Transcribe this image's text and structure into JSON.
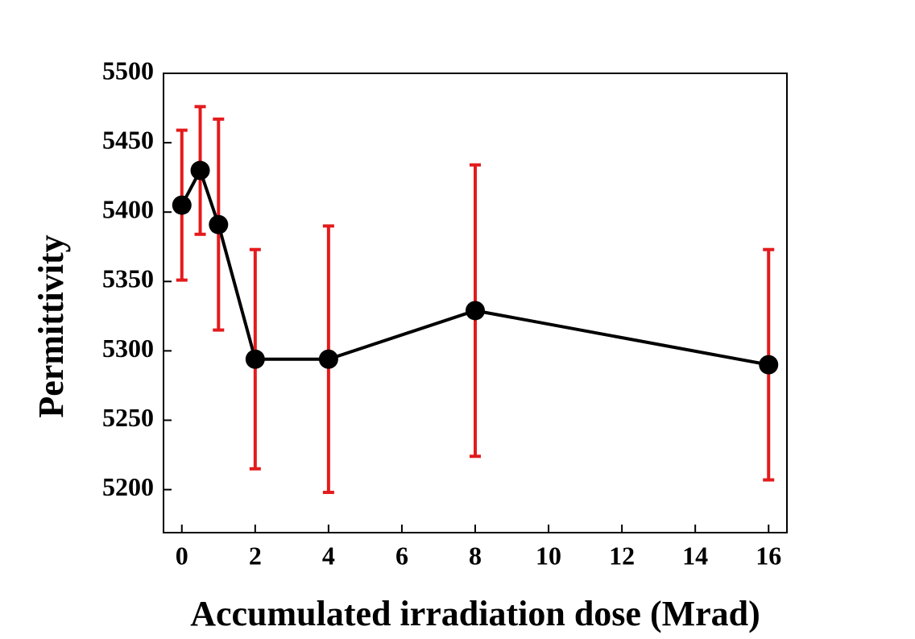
{
  "chart_data": {
    "type": "line",
    "xlabel": "Accumulated irradiation dose (Mrad)",
    "ylabel": "Permittivity",
    "x": [
      0,
      0.5,
      1,
      2,
      4,
      8,
      16
    ],
    "series": [
      {
        "name": "Permittivity",
        "color": "#000000",
        "error_color": "#e31a1c",
        "values": [
          5405,
          5430,
          5391,
          5294,
          5294,
          5329,
          5290
        ],
        "errors": [
          54,
          46,
          76,
          79,
          96,
          105,
          83
        ]
      }
    ],
    "xlim": [
      -0.5,
      16.5
    ],
    "xticks": [
      0,
      2,
      4,
      6,
      8,
      10,
      12,
      14,
      16
    ],
    "ylim": [
      5169,
      5500
    ],
    "yticks": [
      5200,
      5250,
      5300,
      5350,
      5400,
      5450,
      5500
    ]
  }
}
